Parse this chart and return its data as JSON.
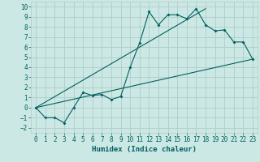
{
  "title": "",
  "xlabel": "Humidex (Indice chaleur)",
  "ylabel": "",
  "bg_color": "#cce8e4",
  "grid_color": "#b0ccc8",
  "line_color": "#006060",
  "xlim": [
    -0.5,
    23.5
  ],
  "ylim": [
    -2.5,
    10.5
  ],
  "xticks": [
    0,
    1,
    2,
    3,
    4,
    5,
    6,
    7,
    8,
    9,
    10,
    11,
    12,
    13,
    14,
    15,
    16,
    17,
    18,
    19,
    20,
    21,
    22,
    23
  ],
  "yticks": [
    -2,
    -1,
    0,
    1,
    2,
    3,
    4,
    5,
    6,
    7,
    8,
    9,
    10
  ],
  "line1_x": [
    0,
    1,
    2,
    3,
    4,
    5,
    6,
    7,
    8,
    9,
    10,
    11,
    12,
    13,
    14,
    15,
    16,
    17,
    18,
    19,
    20,
    21,
    22,
    23
  ],
  "line1_y": [
    0,
    -1,
    -1,
    -1.5,
    0,
    1.5,
    1.2,
    1.3,
    0.8,
    1.1,
    4,
    6.4,
    9.5,
    8.2,
    9.2,
    9.2,
    8.8,
    9.8,
    8.2,
    7.6,
    7.7,
    6.5,
    6.5,
    4.8
  ],
  "line2_x": [
    0,
    23
  ],
  "line2_y": [
    0,
    4.8
  ],
  "line3_x": [
    0,
    18
  ],
  "line3_y": [
    0,
    9.8
  ],
  "tick_fontsize": 5.5,
  "xlabel_fontsize": 6.5
}
